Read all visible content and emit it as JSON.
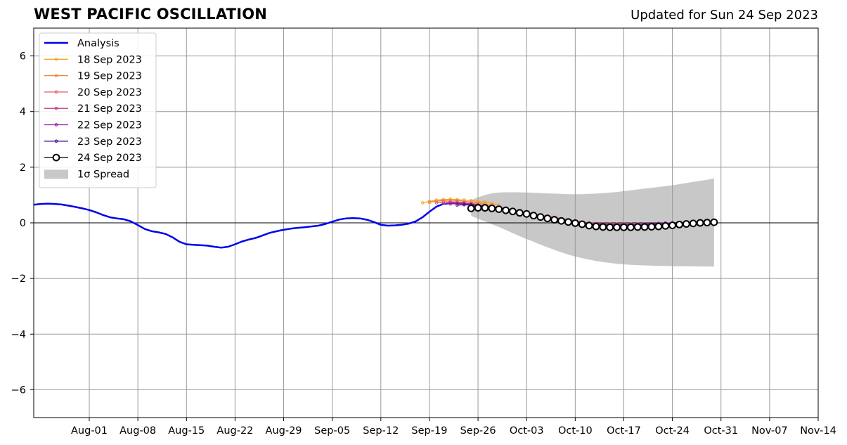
{
  "header": {
    "title": "WEST PACIFIC OSCILLATION",
    "updated": "Updated for Sun 24 Sep 2023"
  },
  "colors": {
    "analysis": "#0000ee",
    "spread": "#c8c8c8",
    "grid": "#999999",
    "zero_line": "#000000"
  },
  "chart_data": {
    "type": "line",
    "title": "WEST PACIFIC OSCILLATION",
    "subtitle": "Updated for Sun 24 Sep 2023",
    "xlim": [
      "2023-07-24",
      "2023-11-14"
    ],
    "ylim": [
      -7,
      7
    ],
    "x_ticks": [
      "2023-08-01",
      "2023-08-08",
      "2023-08-15",
      "2023-08-22",
      "2023-08-29",
      "2023-09-05",
      "2023-09-12",
      "2023-09-19",
      "2023-09-26",
      "2023-10-03",
      "2023-10-10",
      "2023-10-17",
      "2023-10-24",
      "2023-10-31",
      "2023-11-07",
      "2023-11-14"
    ],
    "x_tick_labels": [
      "Aug-01",
      "Aug-08",
      "Aug-15",
      "Aug-22",
      "Aug-29",
      "Sep-05",
      "Sep-12",
      "Sep-19",
      "Sep-26",
      "Oct-03",
      "Oct-10",
      "Oct-17",
      "Oct-24",
      "Oct-31",
      "Nov-07",
      "Nov-14"
    ],
    "y_ticks": [
      -6,
      -4,
      -2,
      0,
      2,
      4,
      6
    ],
    "y_tick_labels": [
      "−6",
      "−4",
      "−2",
      "0",
      "2",
      "4",
      "6"
    ],
    "grid": true,
    "legend_position": "top-left",
    "spread_label": "1σ Spread",
    "series": [
      {
        "name": "Analysis",
        "color": "#0000ee",
        "marker": "none",
        "start": "2023-07-24",
        "values": [
          0.65,
          0.68,
          0.69,
          0.68,
          0.66,
          0.62,
          0.57,
          0.52,
          0.46,
          0.38,
          0.28,
          0.2,
          0.16,
          0.13,
          0.05,
          -0.08,
          -0.22,
          -0.3,
          -0.34,
          -0.4,
          -0.52,
          -0.68,
          -0.77,
          -0.79,
          -0.8,
          -0.82,
          -0.86,
          -0.89,
          -0.86,
          -0.77,
          -0.67,
          -0.6,
          -0.54,
          -0.45,
          -0.36,
          -0.3,
          -0.25,
          -0.21,
          -0.18,
          -0.16,
          -0.13,
          -0.1,
          -0.04,
          0.04,
          0.12,
          0.16,
          0.17,
          0.16,
          0.11,
          0.03,
          -0.07,
          -0.1,
          -0.09,
          -0.07,
          -0.03,
          0.05,
          0.2,
          0.4,
          0.58,
          0.68,
          0.71,
          0.73,
          0.72
        ]
      },
      {
        "name": "18 Sep 2023",
        "color": "#f5a623",
        "marker": "small",
        "start": "2023-09-18",
        "values": [
          0.72,
          0.77,
          0.82,
          0.84,
          0.85,
          0.84,
          0.82,
          0.8,
          0.78,
          0.75,
          0.7,
          0.64
        ]
      },
      {
        "name": "19 Sep 2023",
        "color": "#ee8440",
        "marker": "small",
        "start": "2023-09-19",
        "values": [
          0.74,
          0.78,
          0.8,
          0.81,
          0.8,
          0.78,
          0.75,
          0.72,
          0.68,
          0.64
        ]
      },
      {
        "name": "20 Sep 2023",
        "color": "#dd5a6a",
        "marker": "small",
        "start": "2023-09-20",
        "values": [
          0.72,
          0.75,
          0.76,
          0.75,
          0.73,
          0.7,
          0.66,
          0.62,
          0.58,
          0.54,
          0.5,
          0.46,
          0.42,
          0.37,
          0.33,
          0.28,
          0.24,
          0.2,
          0.15,
          0.11,
          0.07,
          0.03,
          0.0,
          -0.02,
          -0.03,
          -0.04,
          -0.04,
          -0.04,
          -0.04,
          -0.04,
          -0.04,
          -0.04,
          -0.03,
          -0.02,
          -0.01,
          0.0
        ]
      },
      {
        "name": "21 Sep 2023",
        "color": "#bb3a8c",
        "marker": "small",
        "start": "2023-09-21",
        "values": [
          0.7,
          0.72,
          0.72,
          0.7,
          0.68,
          0.65,
          0.61,
          0.57,
          0.53,
          0.49,
          0.45,
          0.41,
          0.36,
          0.32,
          0.27,
          0.23,
          0.18,
          0.14,
          0.1,
          0.06,
          0.02,
          -0.01,
          -0.03,
          -0.04,
          -0.05,
          -0.05,
          -0.05,
          -0.05,
          -0.05,
          -0.04,
          -0.03,
          -0.02,
          -0.01,
          0.0,
          0.01
        ]
      },
      {
        "name": "22 Sep 2023",
        "color": "#8a1aa0",
        "marker": "small",
        "start": "2023-09-22",
        "values": [
          0.68,
          0.69,
          0.68,
          0.66,
          0.63,
          0.6,
          0.56,
          0.52,
          0.48,
          0.44,
          0.39,
          0.35,
          0.3,
          0.26,
          0.21,
          0.17,
          0.12,
          0.08,
          0.04,
          0.0,
          -0.03,
          -0.05,
          -0.06,
          -0.07,
          -0.07,
          -0.07,
          -0.06,
          -0.06,
          -0.05,
          -0.04,
          -0.02,
          -0.01,
          0.0,
          0.01
        ]
      },
      {
        "name": "23 Sep 2023",
        "color": "#4a0d8c",
        "marker": "small",
        "start": "2023-09-23",
        "values": [
          0.64,
          0.65,
          0.64,
          0.62,
          0.59,
          0.55,
          0.51,
          0.47,
          0.43,
          0.38,
          0.34,
          0.29,
          0.24,
          0.2,
          0.15,
          0.11,
          0.06,
          0.02,
          -0.02,
          -0.05,
          -0.08,
          -0.1,
          -0.11,
          -0.11,
          -0.11,
          -0.1,
          -0.09,
          -0.08,
          -0.07,
          -0.05,
          -0.03,
          -0.02,
          -0.01
        ]
      },
      {
        "name": "24 Sep 2023",
        "color": "#000000",
        "marker": "circle",
        "start": "2023-09-25",
        "values": [
          0.52,
          0.54,
          0.54,
          0.52,
          0.49,
          0.45,
          0.41,
          0.36,
          0.32,
          0.26,
          0.21,
          0.16,
          0.11,
          0.07,
          0.03,
          -0.01,
          -0.05,
          -0.1,
          -0.13,
          -0.15,
          -0.16,
          -0.16,
          -0.16,
          -0.16,
          -0.15,
          -0.15,
          -0.14,
          -0.13,
          -0.11,
          -0.09,
          -0.06,
          -0.04,
          -0.02,
          0.0,
          0.01,
          0.02
        ]
      }
    ],
    "spread": {
      "start": "2023-09-25",
      "upper": [
        0.82,
        0.92,
        1.0,
        1.06,
        1.09,
        1.1,
        1.1,
        1.1,
        1.09,
        1.08,
        1.07,
        1.06,
        1.05,
        1.04,
        1.03,
        1.03,
        1.03,
        1.04,
        1.05,
        1.07,
        1.09,
        1.11,
        1.14,
        1.17,
        1.2,
        1.23,
        1.26,
        1.29,
        1.32,
        1.35,
        1.39,
        1.43,
        1.47,
        1.51,
        1.55,
        1.6
      ],
      "lower": [
        0.25,
        0.15,
        0.05,
        -0.05,
        -0.15,
        -0.26,
        -0.37,
        -0.48,
        -0.58,
        -0.68,
        -0.78,
        -0.88,
        -0.97,
        -1.06,
        -1.14,
        -1.21,
        -1.27,
        -1.32,
        -1.37,
        -1.41,
        -1.44,
        -1.47,
        -1.49,
        -1.51,
        -1.52,
        -1.53,
        -1.54,
        -1.55,
        -1.55,
        -1.56,
        -1.56,
        -1.56,
        -1.56,
        -1.57,
        -1.57,
        -1.57
      ]
    }
  }
}
